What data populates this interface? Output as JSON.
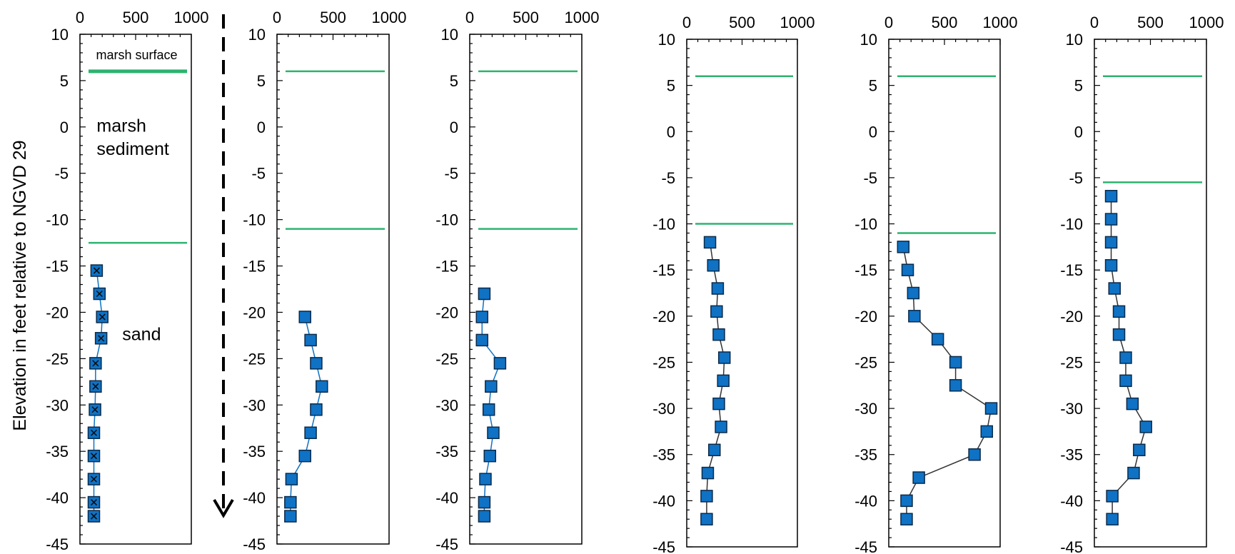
{
  "ylabel": "Elevation in feet relative to NGVD 29",
  "colors": {
    "line_green": "#2db36f",
    "marker_fill": "#0f72c4",
    "marker_stroke": "#0a2a4a"
  },
  "chart_data": [
    {
      "type": "scatter",
      "xlim": [
        0,
        1000
      ],
      "xticks": [
        0,
        500,
        1000
      ],
      "ylim": [
        -45,
        10
      ],
      "yticks": [
        10,
        5,
        0,
        -5,
        -10,
        -15,
        -20,
        -25,
        -30,
        -35,
        -40,
        -45
      ],
      "horizontal_lines": [
        6,
        -12.5
      ],
      "series": [
        {
          "marker": "square-x",
          "x": [
            150,
            175,
            200,
            190,
            140,
            140,
            135,
            125,
            125,
            125,
            125,
            125
          ],
          "y": [
            -15.5,
            -18,
            -20.5,
            -22.8,
            -25.5,
            -28,
            -30.5,
            -33,
            -35.5,
            -38,
            -40.5,
            -42
          ]
        }
      ],
      "annotations": [
        {
          "text": "marsh surface",
          "x": 510,
          "y": 7.3
        },
        {
          "text": "marsh",
          "x": 150,
          "y": -0.5
        },
        {
          "text": "sediment",
          "x": 150,
          "y": -3
        },
        {
          "text": "sand",
          "x": 380,
          "y": -23
        }
      ]
    },
    {
      "type": "line",
      "xlim": [
        0,
        1000
      ],
      "xticks": [
        0,
        500,
        1000
      ],
      "ylim": [
        -45,
        10
      ],
      "yticks": [
        10,
        5,
        0,
        -5,
        -10,
        -15,
        -20,
        -25,
        -30,
        -35,
        -40,
        -45
      ],
      "horizontal_lines": [
        6,
        -11
      ],
      "series": [
        {
          "x": [
            250,
            300,
            350,
            400,
            350,
            300,
            250,
            130,
            120,
            120
          ],
          "y": [
            -20.5,
            -23,
            -25.5,
            -28,
            -30.5,
            -33,
            -35.5,
            -38,
            -40.5,
            -42
          ]
        }
      ]
    },
    {
      "type": "line",
      "xlim": [
        0,
        1000
      ],
      "xticks": [
        0,
        500,
        1000
      ],
      "ylim": [
        -45,
        10
      ],
      "yticks": [
        10,
        5,
        0,
        -5,
        -10,
        -15,
        -20,
        -25,
        -30,
        -35,
        -40,
        -45
      ],
      "horizontal_lines": [
        6,
        -11
      ],
      "series": [
        {
          "x": [
            130,
            110,
            110,
            270,
            190,
            170,
            210,
            180,
            140,
            130,
            130
          ],
          "y": [
            -18,
            -20.5,
            -23,
            -25.5,
            -28,
            -30.5,
            -33,
            -35.5,
            -38,
            -40.5,
            -42
          ]
        }
      ]
    },
    {
      "type": "line",
      "xlim": [
        0,
        1000
      ],
      "xticks": [
        0,
        500,
        1000
      ],
      "ylim": [
        -45,
        10
      ],
      "yticks": [
        10,
        5,
        0,
        -5,
        -10,
        -15,
        -20,
        -25,
        -30,
        -35,
        -40,
        -45
      ],
      "horizontal_lines": [
        6,
        -10
      ],
      "series": [
        {
          "x": [
            210,
            240,
            280,
            270,
            290,
            340,
            330,
            290,
            310,
            250,
            190,
            180,
            180
          ],
          "y": [
            -12,
            -14.5,
            -17,
            -19.5,
            -22,
            -24.5,
            -27,
            -29.5,
            -32,
            -34.5,
            -37,
            -39.5,
            -42
          ]
        }
      ]
    },
    {
      "type": "line",
      "xlim": [
        0,
        1000
      ],
      "xticks": [
        0,
        500,
        1000
      ],
      "ylim": [
        -45,
        10
      ],
      "yticks": [
        10,
        5,
        0,
        -5,
        -10,
        -15,
        -20,
        -25,
        -30,
        -35,
        -40,
        -45
      ],
      "horizontal_lines": [
        6,
        -11
      ],
      "series": [
        {
          "x": [
            130,
            170,
            220,
            230,
            440,
            600,
            600,
            920,
            880,
            770,
            270,
            160,
            160
          ],
          "y": [
            -12.5,
            -15,
            -17.5,
            -20,
            -22.5,
            -25,
            -27.5,
            -30,
            -32.5,
            -35,
            -37.5,
            -40,
            -42
          ]
        }
      ]
    },
    {
      "type": "line",
      "xlim": [
        0,
        1000
      ],
      "xticks": [
        0,
        500,
        1000
      ],
      "ylim": [
        -45,
        10
      ],
      "yticks": [
        10,
        5,
        0,
        -5,
        -10,
        -15,
        -20,
        -25,
        -30,
        -35,
        -40,
        -45
      ],
      "horizontal_lines": [
        6,
        -5.5
      ],
      "series": [
        {
          "x": [
            150,
            150,
            150,
            150,
            180,
            220,
            220,
            280,
            280,
            340,
            460,
            400,
            350,
            160,
            160
          ],
          "y": [
            -7,
            -9.5,
            -12,
            -14.5,
            -17,
            -19.5,
            -22,
            -24.5,
            -27,
            -29.5,
            -32,
            -34.5,
            -37,
            -39.5,
            -42
          ]
        }
      ]
    }
  ]
}
